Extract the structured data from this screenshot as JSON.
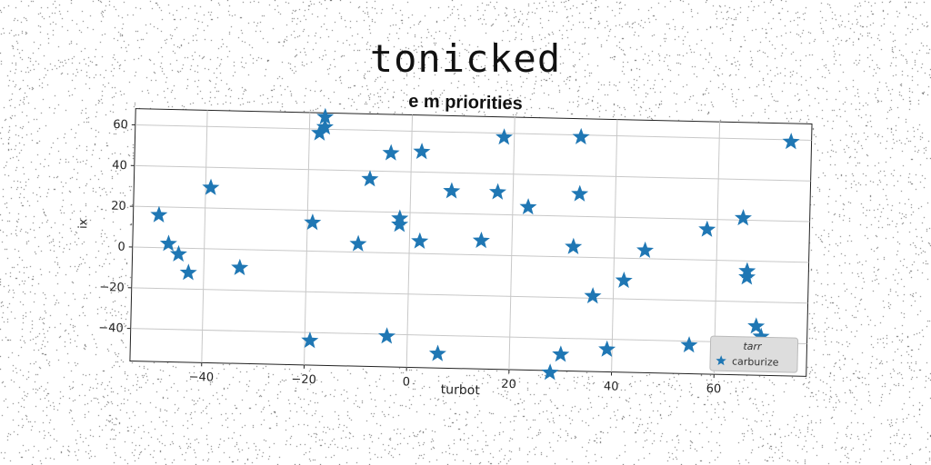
{
  "chart_data": {
    "type": "scatter",
    "title": "tonicked",
    "subtitle": "e m priorities",
    "xlabel": "turbot",
    "ylabel": "ix",
    "xlim": [
      -54,
      78
    ],
    "ylim": [
      -56,
      68
    ],
    "xticks": [
      -40,
      -20,
      0,
      20,
      40,
      60
    ],
    "yticks": [
      -40,
      -20,
      0,
      20,
      40,
      60
    ],
    "grid": true,
    "legend": {
      "title": "tarr",
      "placement": "bottom-right"
    },
    "series": [
      {
        "name": "carburize",
        "color": "#1f77b4",
        "marker": "star",
        "points": [
          [
            -49,
            16
          ],
          [
            -47,
            2
          ],
          [
            -45,
            -3
          ],
          [
            -43,
            -12
          ],
          [
            -39,
            30
          ],
          [
            -33,
            -9
          ],
          [
            -19,
            14
          ],
          [
            -19,
            -44
          ],
          [
            -18,
            58
          ],
          [
            -17,
            61
          ],
          [
            -17,
            66
          ],
          [
            -10,
            4
          ],
          [
            -8,
            36
          ],
          [
            -4,
            49
          ],
          [
            -4,
            -41
          ],
          [
            -2,
            17
          ],
          [
            -2,
            14
          ],
          [
            2,
            50
          ],
          [
            2,
            6
          ],
          [
            6,
            -49
          ],
          [
            8,
            31
          ],
          [
            14,
            7
          ],
          [
            17,
            31
          ],
          [
            18,
            58
          ],
          [
            23,
            24
          ],
          [
            28,
            -57
          ],
          [
            30,
            -48
          ],
          [
            32,
            5
          ],
          [
            33,
            59
          ],
          [
            33,
            31
          ],
          [
            36,
            -19
          ],
          [
            39,
            -45
          ],
          [
            42,
            -11
          ],
          [
            46,
            4
          ],
          [
            55,
            -42
          ],
          [
            58,
            15
          ],
          [
            65,
            21
          ],
          [
            66,
            -5
          ],
          [
            66,
            -8
          ],
          [
            68,
            -32
          ],
          [
            69,
            -37
          ],
          [
            74,
            59
          ]
        ]
      }
    ]
  }
}
